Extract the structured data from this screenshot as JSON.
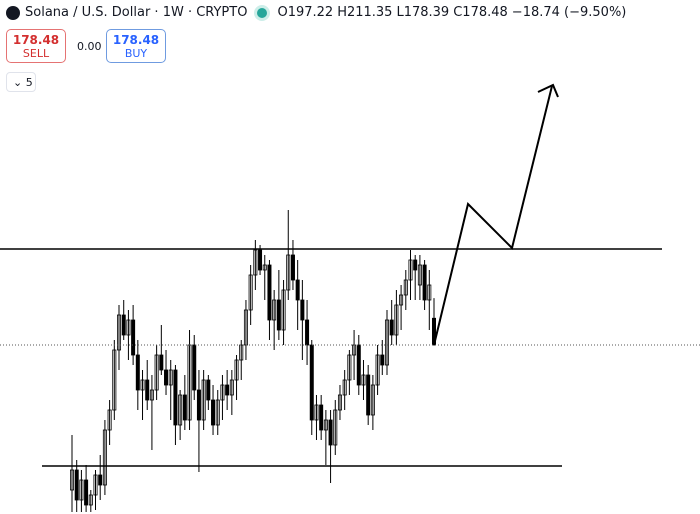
{
  "header": {
    "symbol": "Solana / U.S. Dollar · 1W · CRYPTO",
    "ohlc": [
      {
        "key": "O",
        "value": "197.22"
      },
      {
        "key": "H",
        "value": "211.35"
      },
      {
        "key": "L",
        "value": "178.39"
      },
      {
        "key": "C",
        "value": "178.48"
      }
    ],
    "change": "−18.74 (−9.50%)",
    "sell_price": "178.48",
    "sell_label": "SELL",
    "spread": "0.00",
    "buy_price": "178.48",
    "buy_label": "BUY",
    "indicators": "5"
  },
  "chart_data": {
    "type": "candlestick",
    "up_color": "#ffffff",
    "down_color": "#000000",
    "levels": [
      245.7,
      93.8
    ],
    "candles": [
      [
        77,
        115.5,
        61.6,
        91
      ],
      [
        91,
        98,
        61.6,
        70
      ],
      [
        70,
        91,
        61.6,
        84
      ],
      [
        84,
        94.5,
        61.6,
        66.5
      ],
      [
        66.5,
        77,
        61.6,
        73.5
      ],
      [
        73.5,
        91,
        63,
        87.5
      ],
      [
        87.5,
        101.5,
        70,
        80.5
      ],
      [
        80.5,
        126,
        73.5,
        119
      ],
      [
        119,
        140,
        108.5,
        133
      ],
      [
        133,
        182,
        126,
        175
      ],
      [
        175,
        206.5,
        161,
        199.5
      ],
      [
        199.5,
        210,
        182,
        185.5
      ],
      [
        185.5,
        203,
        168,
        196
      ],
      [
        196,
        206.5,
        164.5,
        171.5
      ],
      [
        171.5,
        182,
        133,
        147
      ],
      [
        147,
        161,
        126,
        154
      ],
      [
        154,
        168,
        133,
        140
      ],
      [
        140,
        157.5,
        105,
        147
      ],
      [
        147,
        178.5,
        140,
        171.5
      ],
      [
        171.5,
        192.5,
        157.5,
        161
      ],
      [
        161,
        175,
        143.5,
        150.5
      ],
      [
        150.5,
        168,
        126,
        161
      ],
      [
        161,
        164.5,
        108.5,
        122.5
      ],
      [
        122.5,
        147,
        112,
        143.5
      ],
      [
        143.5,
        157.5,
        119,
        126
      ],
      [
        126,
        189,
        119,
        178.5
      ],
      [
        178.5,
        185.5,
        140,
        147
      ],
      [
        147,
        161,
        89.6,
        126
      ],
      [
        126,
        161,
        119,
        154
      ],
      [
        154,
        157.5,
        133,
        140
      ],
      [
        140,
        150.5,
        115.5,
        122.5
      ],
      [
        122.5,
        147,
        115.5,
        140
      ],
      [
        140,
        157.5,
        126,
        150.5
      ],
      [
        150.5,
        161,
        133,
        143.5
      ],
      [
        143.5,
        161,
        129.5,
        154
      ],
      [
        154,
        171.5,
        140,
        168
      ],
      [
        168,
        182,
        154,
        178.5
      ],
      [
        178.5,
        210,
        168,
        203
      ],
      [
        203,
        234.5,
        192.5,
        227.5
      ],
      [
        227.5,
        252,
        217,
        245
      ],
      [
        245,
        248.5,
        227.5,
        231
      ],
      [
        231,
        241.5,
        210,
        234.5
      ],
      [
        234.5,
        238,
        182,
        196
      ],
      [
        196,
        217,
        175,
        210
      ],
      [
        210,
        231,
        182,
        189
      ],
      [
        189,
        224,
        178.5,
        217
      ],
      [
        217,
        273,
        210,
        241.5
      ],
      [
        241.5,
        252,
        217,
        224
      ],
      [
        224,
        238,
        189,
        210
      ],
      [
        210,
        224,
        168,
        196
      ],
      [
        196,
        210,
        164.5,
        178.5
      ],
      [
        178.5,
        182,
        115.5,
        126
      ],
      [
        126,
        143.5,
        112,
        136.5
      ],
      [
        136.5,
        143.5,
        112,
        119
      ],
      [
        119,
        133,
        94.5,
        126
      ],
      [
        126,
        133,
        81.9,
        108.5
      ],
      [
        108.5,
        140,
        101.5,
        133
      ],
      [
        133,
        150.5,
        126,
        143.5
      ],
      [
        143.5,
        161,
        133,
        154
      ],
      [
        154,
        175,
        143.5,
        171.5
      ],
      [
        171.5,
        189,
        154,
        178.5
      ],
      [
        178.5,
        185.5,
        143.5,
        150.5
      ],
      [
        150.5,
        168,
        140,
        157.5
      ],
      [
        157.5,
        164.5,
        122.5,
        129.5
      ],
      [
        129.5,
        157.5,
        119,
        150.5
      ],
      [
        150.5,
        178.5,
        143.5,
        171.5
      ],
      [
        171.5,
        182,
        157.5,
        164.5
      ],
      [
        164.5,
        203,
        157.5,
        196
      ],
      [
        196,
        210,
        178.5,
        185.5
      ],
      [
        185.5,
        217,
        178.5,
        206.5
      ],
      [
        206.5,
        220.5,
        189,
        213.5
      ],
      [
        213.5,
        231,
        203,
        224
      ],
      [
        224,
        245,
        210,
        238
      ],
      [
        238,
        241.5,
        210,
        231
      ],
      [
        220.5,
        241.5,
        210,
        234.5
      ],
      [
        234.5,
        238,
        203,
        210
      ],
      [
        210,
        231,
        189,
        220.5
      ],
      [
        197.22,
        211.35,
        178.39,
        178.48
      ]
    ]
  }
}
